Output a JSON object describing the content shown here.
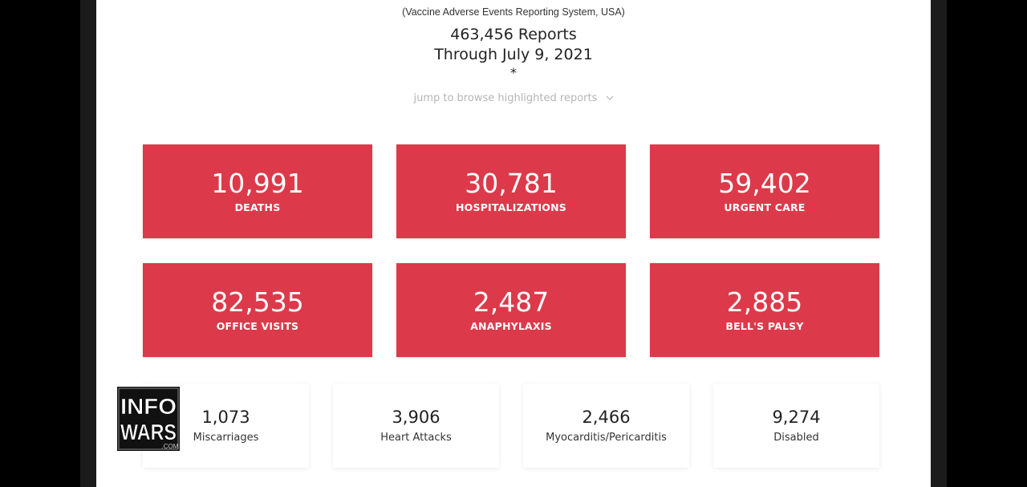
{
  "header": {
    "subtitle": "(Vaccine Adverse Events Reporting System, USA)",
    "reports_line": "463,456 Reports",
    "through_line": "Through July 9, 2021",
    "asterisk": "*",
    "jump_link": "jump to browse highlighted reports"
  },
  "cards": [
    {
      "value": "10,991",
      "label": "DEATHS"
    },
    {
      "value": "30,781",
      "label": "HOSPITALIZATIONS"
    },
    {
      "value": "59,402",
      "label": "URGENT CARE"
    },
    {
      "value": "82,535",
      "label": "OFFICE VISITS"
    },
    {
      "value": "2,487",
      "label": "ANAPHYLAXIS"
    },
    {
      "value": "2,885",
      "label": "BELL'S PALSY"
    }
  ],
  "stats": [
    {
      "value": "1,073",
      "label": "Miscarriages"
    },
    {
      "value": "3,906",
      "label": "Heart Attacks"
    },
    {
      "value": "2,466",
      "label": "Myocarditis/Pericarditis"
    },
    {
      "value": "9,274",
      "label": "Disabled"
    }
  ],
  "logo": {
    "line1": "INFO",
    "line2": "WARS",
    "suffix": ".COM"
  },
  "colors": {
    "card_red": "#dc3a4a",
    "jump_gray": "#b5b5b5"
  }
}
